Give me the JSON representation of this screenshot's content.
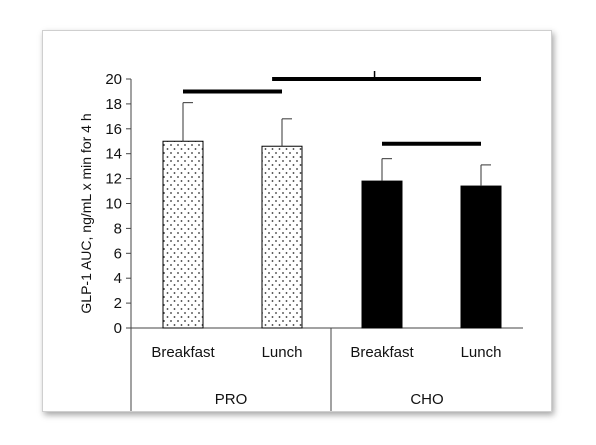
{
  "chart_data": {
    "type": "bar",
    "ylabel": "GLP-1 AUC, ng/mL x min for 4 h",
    "ylim": [
      0,
      20
    ],
    "yticks": [
      0,
      2,
      4,
      6,
      8,
      10,
      12,
      14,
      16,
      18,
      20
    ],
    "groups": [
      "PRO",
      "CHO"
    ],
    "categories": [
      "Breakfast",
      "Lunch",
      "Breakfast",
      "Lunch"
    ],
    "bars": [
      {
        "group": "PRO",
        "category": "Breakfast",
        "value": 15.0,
        "error": 3.1,
        "fill": "dotted"
      },
      {
        "group": "PRO",
        "category": "Lunch",
        "value": 14.6,
        "error": 2.2,
        "fill": "dotted"
      },
      {
        "group": "CHO",
        "category": "Breakfast",
        "value": 11.8,
        "error": 1.8,
        "fill": "solid"
      },
      {
        "group": "CHO",
        "category": "Lunch",
        "value": 11.4,
        "error": 1.7,
        "fill": "solid"
      }
    ],
    "comparison_lines": [
      {
        "from_bar": 0,
        "to_bar": 1,
        "y": 19
      },
      {
        "from_bar": 0.9,
        "to_bar": 3,
        "y": 20
      },
      {
        "from_bar": 2,
        "to_bar": 3,
        "y": 14.8
      }
    ],
    "colors": {
      "solid": "#000000",
      "dotted_bg": "#ffffff",
      "dot": "#333333"
    }
  }
}
